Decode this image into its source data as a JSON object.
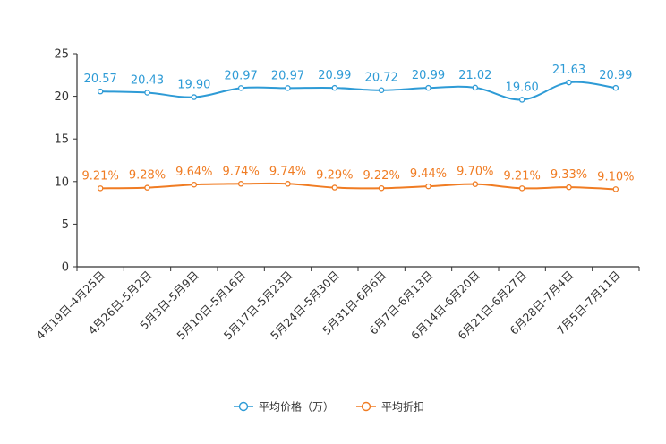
{
  "chart_data": {
    "type": "line",
    "categories": [
      "4月19日-4月25日",
      "4月26日-5月2日",
      "5月3日-5月9日",
      "5月10日-5月16日",
      "5月17日-5月23日",
      "5月24日-5月30日",
      "5月31日-6月6日",
      "6月7日-6月13日",
      "6月14日-6月20日",
      "6月21日-6月27日",
      "6月28日-7月4日",
      "7月5日-7月11日"
    ],
    "ylim": [
      0,
      25
    ],
    "yticks": [
      0,
      5,
      10,
      15,
      20,
      25
    ],
    "series": [
      {
        "name": "平均价格（万）",
        "color": "#2e9bd6",
        "values": [
          20.57,
          20.43,
          19.9,
          20.97,
          20.97,
          20.99,
          20.72,
          20.99,
          21.02,
          19.6,
          21.63,
          20.99
        ],
        "labels": [
          "20.57",
          "20.43",
          "19.90",
          "20.97",
          "20.97",
          "20.99",
          "20.72",
          "20.99",
          "21.02",
          "19.60",
          "21.63",
          "20.99"
        ]
      },
      {
        "name": "平均折扣",
        "color": "#f07c23",
        "values": [
          9.21,
          9.28,
          9.64,
          9.74,
          9.74,
          9.29,
          9.22,
          9.44,
          9.7,
          9.21,
          9.33,
          9.1
        ],
        "labels": [
          "9.21%",
          "9.28%",
          "9.64%",
          "9.74%",
          "9.74%",
          "9.29%",
          "9.22%",
          "9.44%",
          "9.70%",
          "9.21%",
          "9.33%",
          "9.10%"
        ]
      }
    ],
    "legend_position": "bottom-center"
  }
}
